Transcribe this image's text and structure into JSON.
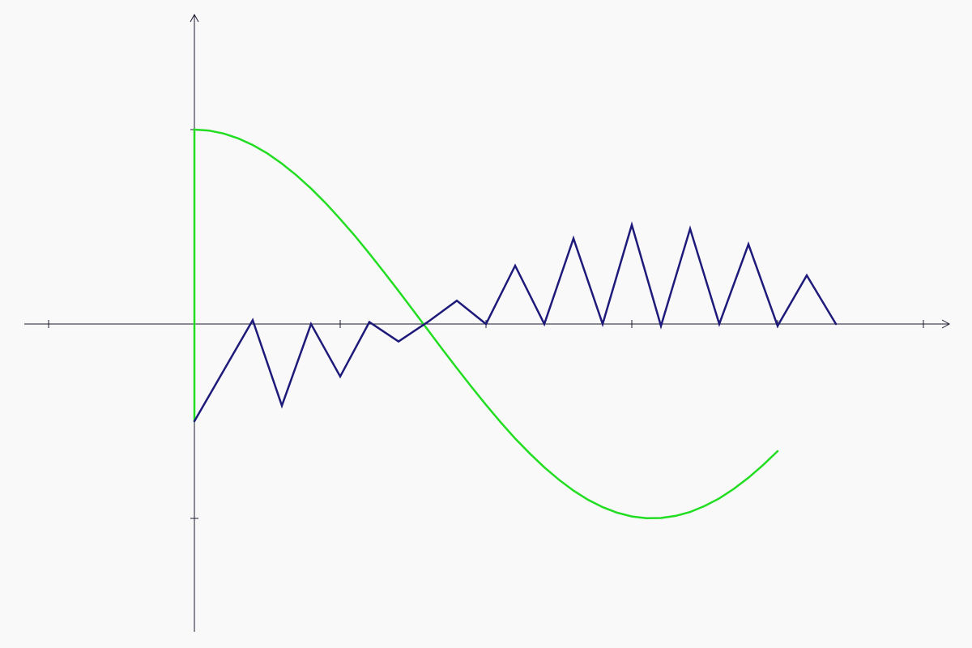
{
  "chart_data": {
    "type": "line",
    "title": "",
    "xlabel": "",
    "ylabel": "",
    "grid": false,
    "xlim": [
      -1,
      5.2
    ],
    "ylim": [
      -1.6,
      1.6
    ],
    "x_ticks": [
      -1,
      0,
      1,
      2,
      3,
      4,
      5
    ],
    "y_ticks": [
      -1,
      1
    ],
    "colors": {
      "background": "#f9f9f9",
      "axis": "#1a1a2e",
      "green_series": "#22dd22",
      "navy_series": "#1e1a7a"
    },
    "series": [
      {
        "color": "#22dd22",
        "points": [
          [
            0,
            -0.5
          ],
          [
            0,
            1
          ],
          [
            0.1,
            0.995
          ],
          [
            0.2,
            0.98
          ],
          [
            0.3,
            0.955
          ],
          [
            0.4,
            0.921
          ],
          [
            0.5,
            0.878
          ],
          [
            0.6,
            0.825
          ],
          [
            0.7,
            0.765
          ],
          [
            0.8,
            0.697
          ],
          [
            0.9,
            0.622
          ],
          [
            1.0,
            0.54
          ],
          [
            1.1,
            0.454
          ],
          [
            1.2,
            0.362
          ],
          [
            1.3,
            0.267
          ],
          [
            1.4,
            0.17
          ],
          [
            1.5,
            0.071
          ],
          [
            1.6,
            -0.029
          ],
          [
            1.7,
            -0.129
          ],
          [
            1.8,
            -0.227
          ],
          [
            1.9,
            -0.323
          ],
          [
            2.0,
            -0.416
          ],
          [
            2.1,
            -0.505
          ],
          [
            2.2,
            -0.589
          ],
          [
            2.3,
            -0.666
          ],
          [
            2.4,
            -0.737
          ],
          [
            2.5,
            -0.801
          ],
          [
            2.6,
            -0.857
          ],
          [
            2.7,
            -0.904
          ],
          [
            2.8,
            -0.942
          ],
          [
            2.9,
            -0.971
          ],
          [
            3.0,
            -0.99
          ],
          [
            3.1,
            -0.999
          ],
          [
            3.2,
            -0.998
          ],
          [
            3.3,
            -0.987
          ],
          [
            3.4,
            -0.967
          ],
          [
            3.5,
            -0.936
          ],
          [
            3.6,
            -0.897
          ],
          [
            3.7,
            -0.848
          ],
          [
            3.8,
            -0.791
          ],
          [
            3.9,
            -0.726
          ],
          [
            4.0,
            -0.654
          ]
        ]
      },
      {
        "color": "#1e1a7a",
        "points": [
          [
            0,
            -0.5
          ],
          [
            0.4,
            0.02
          ],
          [
            0.6,
            -0.42
          ],
          [
            0.8,
            0
          ],
          [
            1.0,
            -0.27
          ],
          [
            1.2,
            0.01
          ],
          [
            1.4,
            -0.09
          ],
          [
            1.6,
            0.01
          ],
          [
            1.8,
            0.12
          ],
          [
            2.0,
            0
          ],
          [
            2.2,
            0.3
          ],
          [
            2.4,
            0
          ],
          [
            2.6,
            0.44
          ],
          [
            2.8,
            0
          ],
          [
            3.0,
            0.51
          ],
          [
            3.2,
            -0.01
          ],
          [
            3.4,
            0.49
          ],
          [
            3.6,
            0
          ],
          [
            3.8,
            0.41
          ],
          [
            4.0,
            -0.01
          ],
          [
            4.2,
            0.25
          ],
          [
            4.4,
            0
          ]
        ]
      }
    ]
  }
}
